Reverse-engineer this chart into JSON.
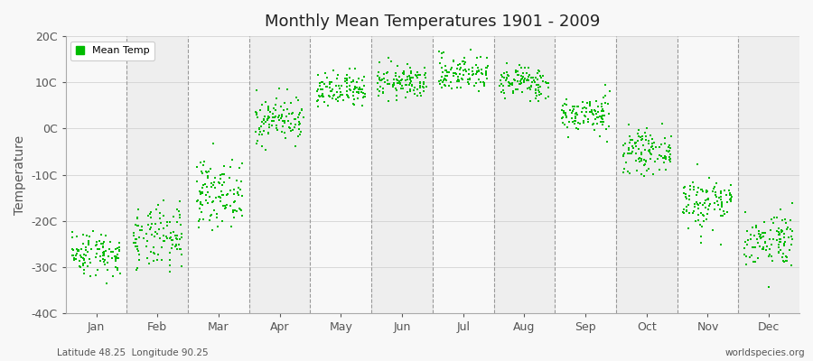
{
  "title": "Monthly Mean Temperatures 1901 - 2009",
  "ylabel": "Temperature",
  "xlabel_bottom_left": "Latitude 48.25  Longitude 90.25",
  "xlabel_bottom_right": "worldspecies.org",
  "ylim": [
    -40,
    20
  ],
  "yticks": [
    -40,
    -30,
    -20,
    -10,
    0,
    10,
    20
  ],
  "ytick_labels": [
    "-40C",
    "-30C",
    "-20C",
    "-10C",
    "0C",
    "10C",
    "20C"
  ],
  "months": [
    "Jan",
    "Feb",
    "Mar",
    "Apr",
    "May",
    "Jun",
    "Jul",
    "Aug",
    "Sep",
    "Oct",
    "Nov",
    "Dec"
  ],
  "dot_color": "#00bb00",
  "background_color": "#f8f8f8",
  "band_colors": [
    "#f8f8f8",
    "#eeeeee"
  ],
  "n_years": 109,
  "seed": 42,
  "monthly_means": [
    -27,
    -24,
    -14,
    2,
    8,
    10,
    12,
    10,
    3,
    -5,
    -16,
    -24
  ],
  "monthly_stds": [
    2.5,
    3.5,
    3.5,
    2.5,
    2.0,
    1.8,
    2.0,
    1.8,
    2.0,
    2.2,
    3.0,
    3.0
  ],
  "marker_size": 3,
  "legend_label": "Mean Temp",
  "figsize": [
    9.0,
    4.0
  ],
  "dpi": 100
}
